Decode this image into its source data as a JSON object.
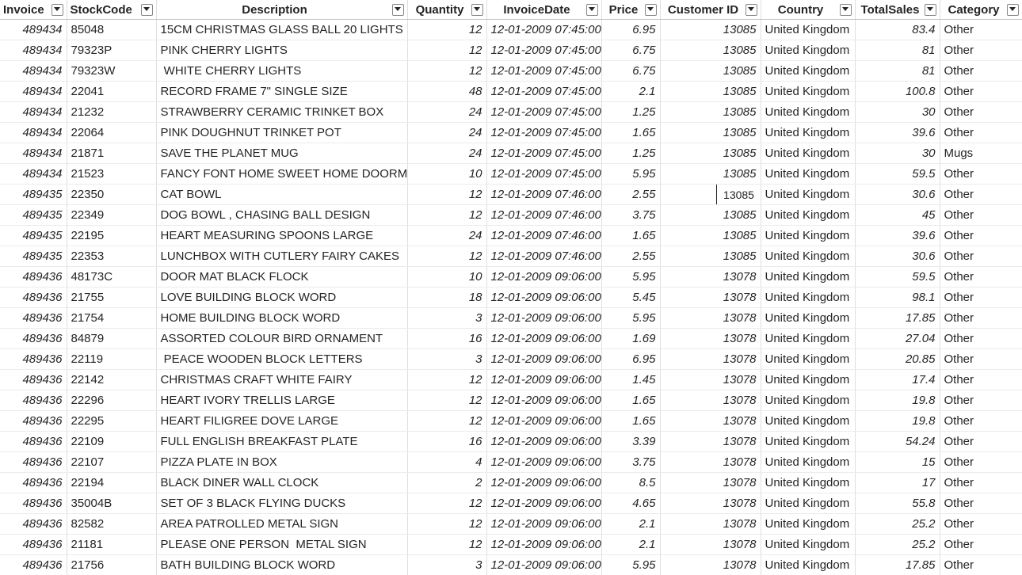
{
  "columns": [
    {
      "key": "invoice",
      "label": "Invoice"
    },
    {
      "key": "stock",
      "label": "StockCode"
    },
    {
      "key": "desc",
      "label": "Description"
    },
    {
      "key": "qty",
      "label": "Quantity"
    },
    {
      "key": "date",
      "label": "InvoiceDate"
    },
    {
      "key": "price",
      "label": "Price"
    },
    {
      "key": "cust",
      "label": "Customer ID"
    },
    {
      "key": "country",
      "label": "Country"
    },
    {
      "key": "total",
      "label": "TotalSales"
    },
    {
      "key": "cat",
      "label": "Category"
    }
  ],
  "filter_icon": "chevron-down-icon",
  "selected_cell": {
    "row": 8,
    "column": "cust",
    "value": "13085"
  },
  "rows": [
    [
      "489434",
      "85048",
      "15CM CHRISTMAS GLASS BALL 20 LIGHTS",
      "12",
      "12-01-2009 07:45:00",
      "6.95",
      "13085",
      "United Kingdom",
      "83.4",
      "Other"
    ],
    [
      "489434",
      "79323P",
      "PINK CHERRY LIGHTS",
      "12",
      "12-01-2009 07:45:00",
      "6.75",
      "13085",
      "United Kingdom",
      "81",
      "Other"
    ],
    [
      "489434",
      "79323W",
      " WHITE CHERRY LIGHTS",
      "12",
      "12-01-2009 07:45:00",
      "6.75",
      "13085",
      "United Kingdom",
      "81",
      "Other"
    ],
    [
      "489434",
      "22041",
      "RECORD FRAME 7\" SINGLE SIZE",
      "48",
      "12-01-2009 07:45:00",
      "2.1",
      "13085",
      "United Kingdom",
      "100.8",
      "Other"
    ],
    [
      "489434",
      "21232",
      "STRAWBERRY CERAMIC TRINKET BOX",
      "24",
      "12-01-2009 07:45:00",
      "1.25",
      "13085",
      "United Kingdom",
      "30",
      "Other"
    ],
    [
      "489434",
      "22064",
      "PINK DOUGHNUT TRINKET POT",
      "24",
      "12-01-2009 07:45:00",
      "1.65",
      "13085",
      "United Kingdom",
      "39.6",
      "Other"
    ],
    [
      "489434",
      "21871",
      "SAVE THE PLANET MUG",
      "24",
      "12-01-2009 07:45:00",
      "1.25",
      "13085",
      "United Kingdom",
      "30",
      "Mugs"
    ],
    [
      "489434",
      "21523",
      "FANCY FONT HOME SWEET HOME DOORMAT",
      "10",
      "12-01-2009 07:45:00",
      "5.95",
      "13085",
      "United Kingdom",
      "59.5",
      "Other"
    ],
    [
      "489435",
      "22350",
      "CAT BOWL",
      "12",
      "12-01-2009 07:46:00",
      "2.55",
      "13085",
      "United Kingdom",
      "30.6",
      "Other"
    ],
    [
      "489435",
      "22349",
      "DOG BOWL , CHASING BALL DESIGN",
      "12",
      "12-01-2009 07:46:00",
      "3.75",
      "13085",
      "United Kingdom",
      "45",
      "Other"
    ],
    [
      "489435",
      "22195",
      "HEART MEASURING SPOONS LARGE",
      "24",
      "12-01-2009 07:46:00",
      "1.65",
      "13085",
      "United Kingdom",
      "39.6",
      "Other"
    ],
    [
      "489435",
      "22353",
      "LUNCHBOX WITH CUTLERY FAIRY CAKES",
      "12",
      "12-01-2009 07:46:00",
      "2.55",
      "13085",
      "United Kingdom",
      "30.6",
      "Other"
    ],
    [
      "489436",
      "48173C",
      "DOOR MAT BLACK FLOCK",
      "10",
      "12-01-2009 09:06:00",
      "5.95",
      "13078",
      "United Kingdom",
      "59.5",
      "Other"
    ],
    [
      "489436",
      "21755",
      "LOVE BUILDING BLOCK WORD",
      "18",
      "12-01-2009 09:06:00",
      "5.45",
      "13078",
      "United Kingdom",
      "98.1",
      "Other"
    ],
    [
      "489436",
      "21754",
      "HOME BUILDING BLOCK WORD",
      "3",
      "12-01-2009 09:06:00",
      "5.95",
      "13078",
      "United Kingdom",
      "17.85",
      "Other"
    ],
    [
      "489436",
      "84879",
      "ASSORTED COLOUR BIRD ORNAMENT",
      "16",
      "12-01-2009 09:06:00",
      "1.69",
      "13078",
      "United Kingdom",
      "27.04",
      "Other"
    ],
    [
      "489436",
      "22119",
      " PEACE WOODEN BLOCK LETTERS",
      "3",
      "12-01-2009 09:06:00",
      "6.95",
      "13078",
      "United Kingdom",
      "20.85",
      "Other"
    ],
    [
      "489436",
      "22142",
      "CHRISTMAS CRAFT WHITE FAIRY",
      "12",
      "12-01-2009 09:06:00",
      "1.45",
      "13078",
      "United Kingdom",
      "17.4",
      "Other"
    ],
    [
      "489436",
      "22296",
      "HEART IVORY TRELLIS LARGE",
      "12",
      "12-01-2009 09:06:00",
      "1.65",
      "13078",
      "United Kingdom",
      "19.8",
      "Other"
    ],
    [
      "489436",
      "22295",
      "HEART FILIGREE DOVE LARGE",
      "12",
      "12-01-2009 09:06:00",
      "1.65",
      "13078",
      "United Kingdom",
      "19.8",
      "Other"
    ],
    [
      "489436",
      "22109",
      "FULL ENGLISH BREAKFAST PLATE",
      "16",
      "12-01-2009 09:06:00",
      "3.39",
      "13078",
      "United Kingdom",
      "54.24",
      "Other"
    ],
    [
      "489436",
      "22107",
      "PIZZA PLATE IN BOX",
      "4",
      "12-01-2009 09:06:00",
      "3.75",
      "13078",
      "United Kingdom",
      "15",
      "Other"
    ],
    [
      "489436",
      "22194",
      "BLACK DINER WALL CLOCK",
      "2",
      "12-01-2009 09:06:00",
      "8.5",
      "13078",
      "United Kingdom",
      "17",
      "Other"
    ],
    [
      "489436",
      "35004B",
      "SET OF 3 BLACK FLYING DUCKS",
      "12",
      "12-01-2009 09:06:00",
      "4.65",
      "13078",
      "United Kingdom",
      "55.8",
      "Other"
    ],
    [
      "489436",
      "82582",
      "AREA PATROLLED METAL SIGN",
      "12",
      "12-01-2009 09:06:00",
      "2.1",
      "13078",
      "United Kingdom",
      "25.2",
      "Other"
    ],
    [
      "489436",
      "21181",
      "PLEASE ONE PERSON  METAL SIGN",
      "12",
      "12-01-2009 09:06:00",
      "2.1",
      "13078",
      "United Kingdom",
      "25.2",
      "Other"
    ],
    [
      "489436",
      "21756",
      "BATH BUILDING BLOCK WORD",
      "3",
      "12-01-2009 09:06:00",
      "5.95",
      "13078",
      "United Kingdom",
      "17.85",
      "Other"
    ]
  ]
}
